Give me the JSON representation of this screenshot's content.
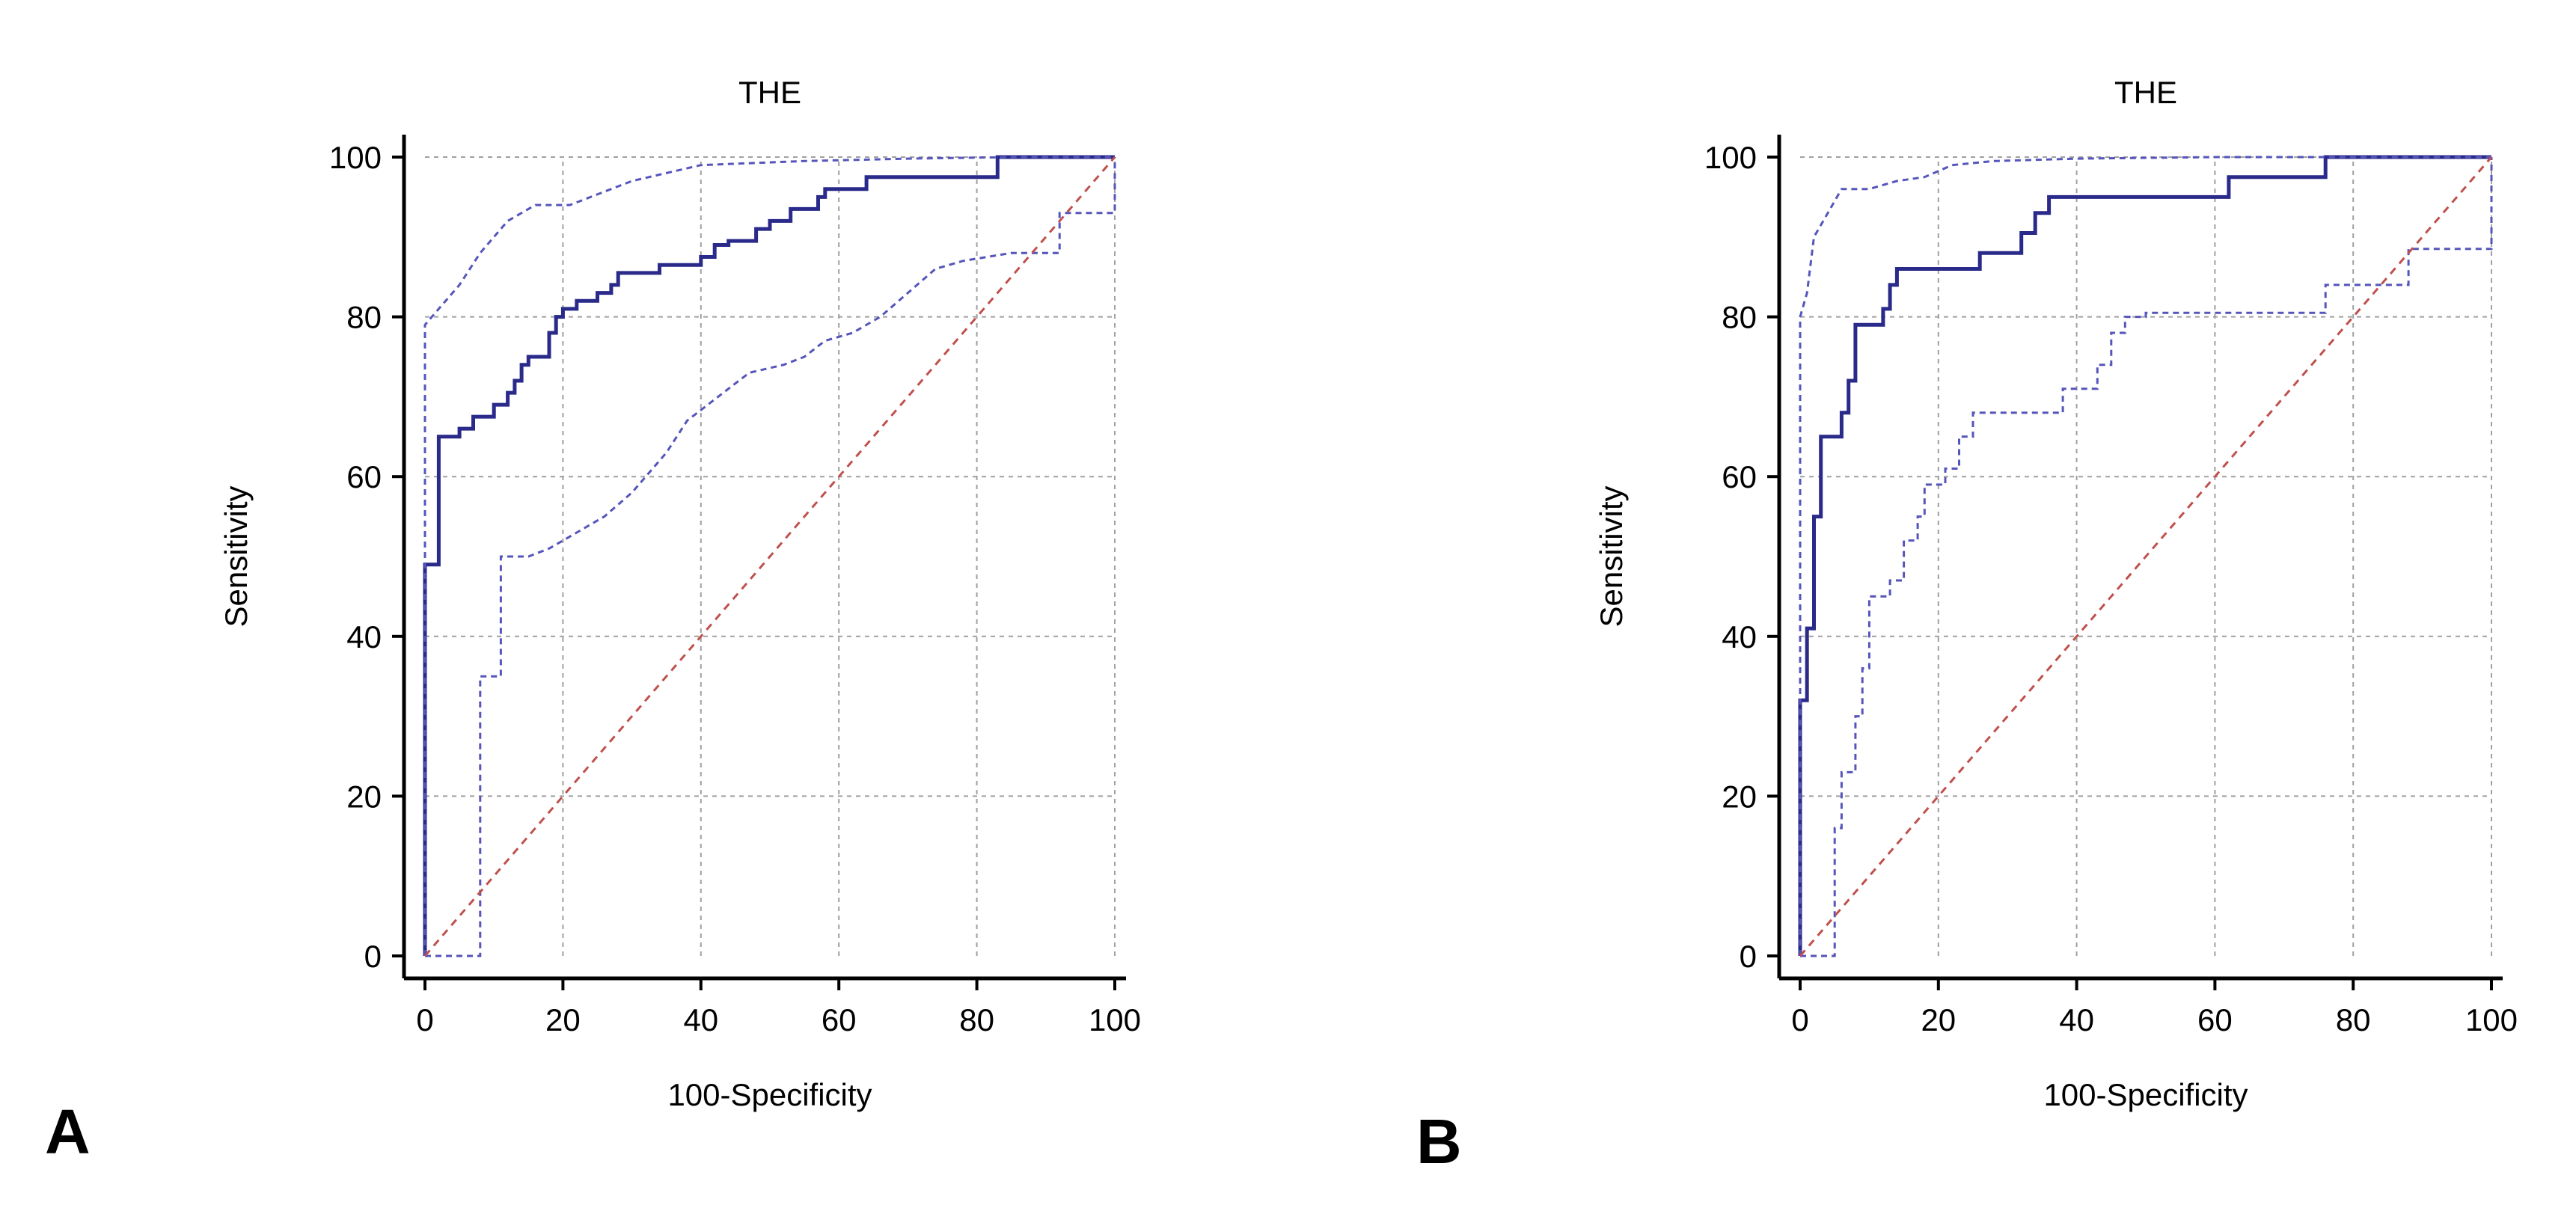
{
  "panel_labels": [
    "A",
    "B"
  ],
  "colors": {
    "roc_curve": "#2a2a8a",
    "confidence_band": "#5555bb",
    "reference_line": "#c0504d",
    "grid": "#a0a0a0",
    "axis": "#000000"
  },
  "chart_data": [
    {
      "type": "line",
      "panel": "A",
      "title": "THE",
      "xlabel": "100-Specificity",
      "ylabel": "Sensitivity",
      "xlim": [
        0,
        100
      ],
      "ylim": [
        0,
        100
      ],
      "xticks": [
        "0",
        "20",
        "40",
        "60",
        "80",
        "100"
      ],
      "yticks": [
        "0",
        "20",
        "40",
        "60",
        "80",
        "100"
      ],
      "grid": true,
      "series": [
        {
          "name": "ROC curve",
          "style": "solid",
          "points": [
            [
              0,
              0
            ],
            [
              0,
              49
            ],
            [
              2,
              49
            ],
            [
              2,
              65
            ],
            [
              5,
              65
            ],
            [
              5,
              66
            ],
            [
              7,
              66
            ],
            [
              7,
              67.5
            ],
            [
              10,
              67.5
            ],
            [
              10,
              69
            ],
            [
              12,
              69
            ],
            [
              12,
              70.5
            ],
            [
              13,
              70.5
            ],
            [
              13,
              72
            ],
            [
              14,
              72
            ],
            [
              14,
              74
            ],
            [
              15,
              74
            ],
            [
              15,
              75
            ],
            [
              18,
              75
            ],
            [
              18,
              78
            ],
            [
              19,
              78
            ],
            [
              19,
              80
            ],
            [
              20,
              80
            ],
            [
              20,
              81
            ],
            [
              22,
              81
            ],
            [
              22,
              82
            ],
            [
              25,
              82
            ],
            [
              25,
              83
            ],
            [
              27,
              83
            ],
            [
              27,
              84
            ],
            [
              28,
              84
            ],
            [
              28,
              85.5
            ],
            [
              34,
              85.5
            ],
            [
              34,
              86.5
            ],
            [
              40,
              86.5
            ],
            [
              40,
              87.5
            ],
            [
              42,
              87.5
            ],
            [
              42,
              89
            ],
            [
              44,
              89
            ],
            [
              44,
              89.5
            ],
            [
              48,
              89.5
            ],
            [
              48,
              91
            ],
            [
              50,
              91
            ],
            [
              50,
              92
            ],
            [
              53,
              92
            ],
            [
              53,
              93.5
            ],
            [
              57,
              93.5
            ],
            [
              57,
              95
            ],
            [
              58,
              95
            ],
            [
              58,
              96
            ],
            [
              64,
              96
            ],
            [
              64,
              97.5
            ],
            [
              83,
              97.5
            ],
            [
              83,
              100
            ],
            [
              100,
              100
            ]
          ]
        },
        {
          "name": "Upper 95% CI",
          "style": "dashed",
          "points": [
            [
              0,
              0
            ],
            [
              0,
              79
            ],
            [
              2,
              81
            ],
            [
              5,
              84
            ],
            [
              8,
              88
            ],
            [
              12,
              92
            ],
            [
              16,
              94
            ],
            [
              21,
              94
            ],
            [
              24,
              95
            ],
            [
              30,
              97
            ],
            [
              40,
              99
            ],
            [
              55,
              99.5
            ],
            [
              70,
              99.8
            ],
            [
              85,
              100
            ],
            [
              100,
              100
            ]
          ]
        },
        {
          "name": "Lower 95% CI",
          "style": "dashed",
          "points": [
            [
              0,
              0
            ],
            [
              8,
              0
            ],
            [
              8,
              35
            ],
            [
              11,
              35
            ],
            [
              11,
              50
            ],
            [
              15,
              50
            ],
            [
              18,
              51
            ],
            [
              22,
              53
            ],
            [
              26,
              55
            ],
            [
              30,
              58
            ],
            [
              35,
              63
            ],
            [
              38,
              67
            ],
            [
              41,
              69
            ],
            [
              44,
              71
            ],
            [
              47,
              73
            ],
            [
              52,
              74
            ],
            [
              55,
              75
            ],
            [
              58,
              77
            ],
            [
              62,
              78
            ],
            [
              66,
              80
            ],
            [
              70,
              83
            ],
            [
              74,
              86
            ],
            [
              78,
              87
            ],
            [
              85,
              88
            ],
            [
              92,
              88
            ],
            [
              92,
              93
            ],
            [
              100,
              93
            ],
            [
              100,
              100
            ]
          ]
        },
        {
          "name": "Reference line",
          "style": "dashed",
          "points": [
            [
              0,
              0
            ],
            [
              100,
              100
            ]
          ]
        }
      ]
    },
    {
      "type": "line",
      "panel": "B",
      "title": "THE",
      "xlabel": "100-Specificity",
      "ylabel": "Sensitivity",
      "xlim": [
        0,
        100
      ],
      "ylim": [
        0,
        100
      ],
      "xticks": [
        "0",
        "20",
        "40",
        "60",
        "80",
        "100"
      ],
      "yticks": [
        "0",
        "20",
        "40",
        "60",
        "80",
        "100"
      ],
      "grid": true,
      "series": [
        {
          "name": "ROC curve",
          "style": "solid",
          "points": [
            [
              0,
              0
            ],
            [
              0,
              32
            ],
            [
              1,
              32
            ],
            [
              1,
              41
            ],
            [
              2,
              41
            ],
            [
              2,
              55
            ],
            [
              3,
              55
            ],
            [
              3,
              65
            ],
            [
              6,
              65
            ],
            [
              6,
              68
            ],
            [
              7,
              68
            ],
            [
              7,
              72
            ],
            [
              8,
              72
            ],
            [
              8,
              79
            ],
            [
              12,
              79
            ],
            [
              12,
              81
            ],
            [
              13,
              81
            ],
            [
              13,
              84
            ],
            [
              14,
              84
            ],
            [
              14,
              86
            ],
            [
              26,
              86
            ],
            [
              26,
              88
            ],
            [
              32,
              88
            ],
            [
              32,
              90.5
            ],
            [
              34,
              90.5
            ],
            [
              34,
              93
            ],
            [
              36,
              93
            ],
            [
              36,
              95
            ],
            [
              62,
              95
            ],
            [
              62,
              97.5
            ],
            [
              76,
              97.5
            ],
            [
              76,
              100
            ],
            [
              100,
              100
            ]
          ]
        },
        {
          "name": "Upper 95% CI",
          "style": "dashed",
          "points": [
            [
              0,
              0
            ],
            [
              0,
              80
            ],
            [
              1,
              83
            ],
            [
              2,
              90
            ],
            [
              4,
              93
            ],
            [
              6,
              96
            ],
            [
              10,
              96
            ],
            [
              14,
              97
            ],
            [
              18,
              97.5
            ],
            [
              22,
              99
            ],
            [
              28,
              99.5
            ],
            [
              40,
              99.8
            ],
            [
              60,
              100
            ],
            [
              100,
              100
            ]
          ]
        },
        {
          "name": "Lower 95% CI",
          "style": "dashed",
          "points": [
            [
              0,
              0
            ],
            [
              5,
              0
            ],
            [
              5,
              16
            ],
            [
              6,
              16
            ],
            [
              6,
              23
            ],
            [
              8,
              23
            ],
            [
              8,
              30
            ],
            [
              9,
              30
            ],
            [
              9,
              36
            ],
            [
              10,
              36
            ],
            [
              10,
              45
            ],
            [
              13,
              45
            ],
            [
              13,
              47
            ],
            [
              15,
              47
            ],
            [
              15,
              52
            ],
            [
              17,
              52
            ],
            [
              17,
              55
            ],
            [
              18,
              55
            ],
            [
              18,
              59
            ],
            [
              21,
              59
            ],
            [
              21,
              61
            ],
            [
              23,
              61
            ],
            [
              23,
              65
            ],
            [
              25,
              65
            ],
            [
              25,
              68
            ],
            [
              38,
              68
            ],
            [
              38,
              71
            ],
            [
              43,
              71
            ],
            [
              43,
              74
            ],
            [
              45,
              74
            ],
            [
              45,
              78
            ],
            [
              47,
              78
            ],
            [
              47,
              80
            ],
            [
              50,
              80
            ],
            [
              50,
              80.5
            ],
            [
              76,
              80.5
            ],
            [
              76,
              84
            ],
            [
              88,
              84
            ],
            [
              88,
              88.5
            ],
            [
              100,
              88.5
            ],
            [
              100,
              100
            ]
          ]
        },
        {
          "name": "Reference line",
          "style": "dashed",
          "points": [
            [
              0,
              0
            ],
            [
              100,
              100
            ]
          ]
        }
      ]
    }
  ]
}
